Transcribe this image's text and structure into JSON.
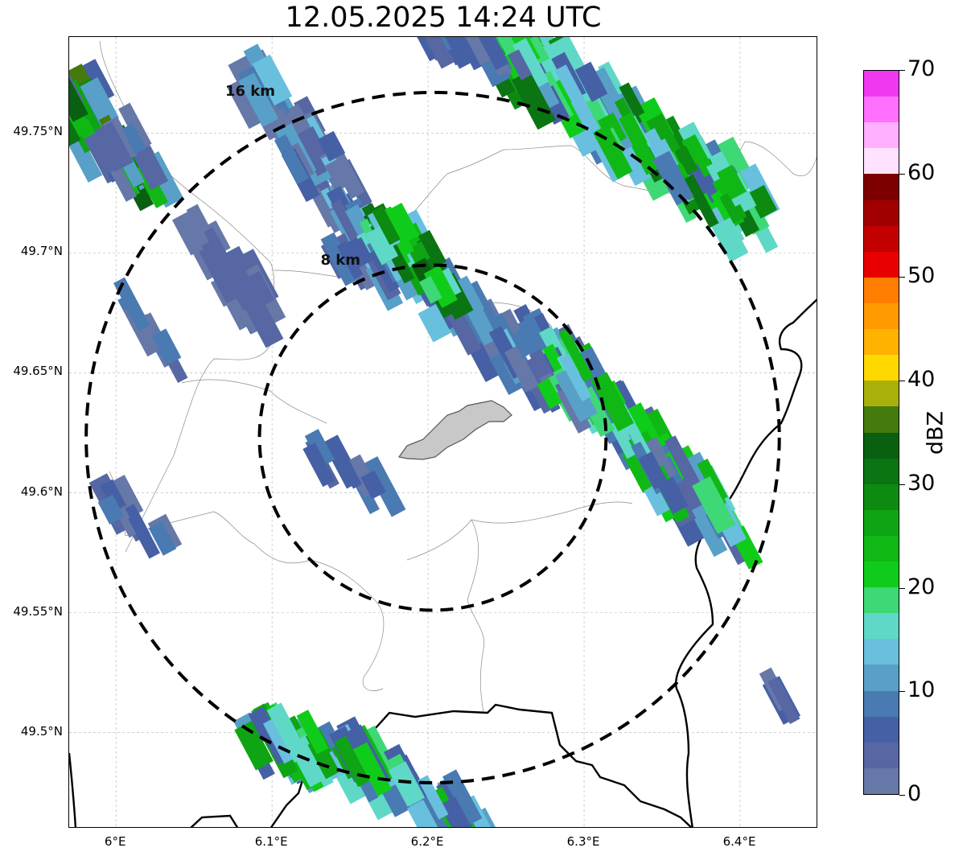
{
  "title": "12.05.2025 14:24 UTC",
  "map": {
    "lon_range": [
      5.97,
      6.45
    ],
    "lat_range": [
      49.46,
      49.79
    ],
    "lon_ticks": [
      "6°E",
      "6.1°E",
      "6.2°E",
      "6.3°E",
      "6.4°E"
    ],
    "lat_ticks": [
      "49.75°N",
      "49.7°N",
      "49.65°N",
      "49.6°N",
      "49.55°N",
      "49.5°N"
    ],
    "rings": [
      {
        "label": "8 km",
        "radius_km": 8
      },
      {
        "label": "16 km",
        "radius_km": 16
      }
    ],
    "center": {
      "lon": 6.203,
      "lat": 49.623
    },
    "ring_style": "dashed black",
    "gridlines": true
  },
  "colorbar": {
    "unit": "dBZ",
    "ticks": [
      "0",
      "10",
      "20",
      "30",
      "40",
      "50",
      "60",
      "70"
    ],
    "range": [
      0,
      70
    ],
    "colors": [
      "#6678a8",
      "#5667a3",
      "#4660a5",
      "#4a7ab2",
      "#58a0c8",
      "#68c0de",
      "#5fd8c8",
      "#3ed876",
      "#10cc1a",
      "#10b815",
      "#0fa414",
      "#0d8a10",
      "#0a7512",
      "#086010",
      "#457a0c",
      "#aab00a",
      "#ffd800",
      "#ffb200",
      "#ff9a00",
      "#ff7d00",
      "#e80000",
      "#c20000",
      "#a00000",
      "#7d0000",
      "#ffe2ff",
      "#ffb0ff",
      "#ff70ff",
      "#f038f0"
    ]
  }
}
